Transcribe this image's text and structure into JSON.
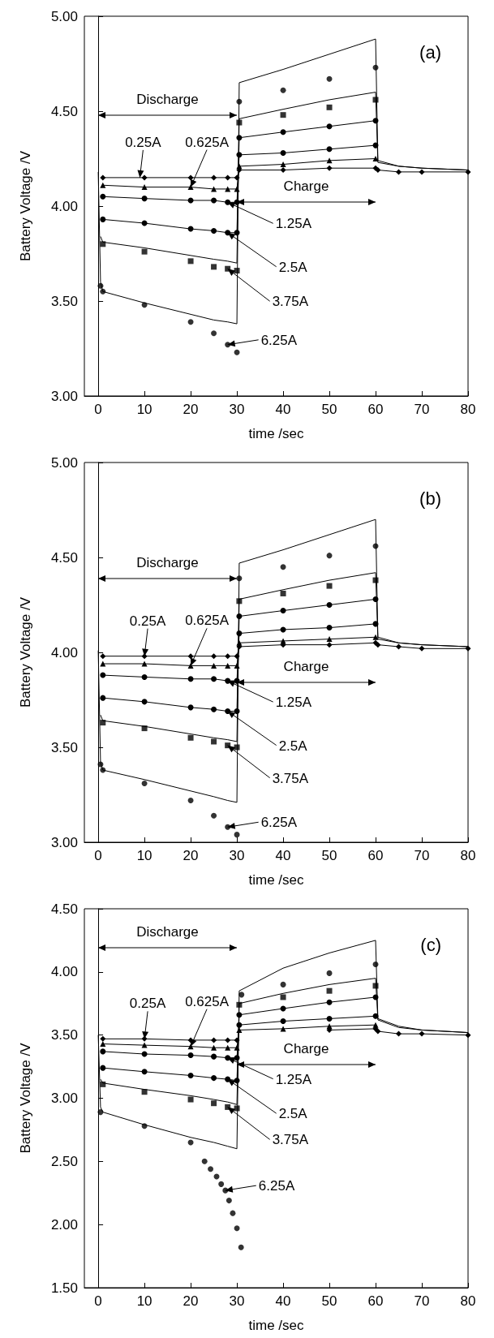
{
  "chart_data": [
    {
      "type": "line",
      "title": "(a)",
      "xlabel": "time /sec",
      "ylabel": "Battery Voltage /V",
      "x": [
        0,
        0.5,
        1,
        10,
        20,
        25,
        28,
        30,
        30.5,
        40,
        50,
        60,
        60.5,
        65,
        70,
        80
      ],
      "xlim": [
        -3,
        80
      ],
      "xticks": [
        0,
        10,
        20,
        30,
        40,
        50,
        60,
        70,
        80
      ],
      "ylim": [
        3,
        5
      ],
      "yticks": [
        {
          "value": 3,
          "label": "3.00"
        },
        {
          "value": 3.5,
          "label": "3.50"
        },
        {
          "value": 4,
          "label": "4.00"
        },
        {
          "value": 4.5,
          "label": "4.50"
        },
        {
          "value": 5,
          "label": "5.00"
        }
      ],
      "annotations": [
        "Discharge",
        "Charge",
        {
          "text": "0.25A",
          "x": 9,
          "y": 4.15
        },
        {
          "text": "0.625A",
          "x": 20,
          "y": 4.1
        },
        {
          "text": "1.25A",
          "x": 28,
          "y": 4.02
        },
        {
          "text": "2.5A",
          "x": 28,
          "y": 3.86
        },
        {
          "text": "3.75A",
          "x": 28,
          "y": 3.67
        },
        {
          "text": "6.25A",
          "x": 28,
          "y": 3.27
        }
      ],
      "series": [
        {
          "type": "line",
          "marker": "diamond",
          "color": "#000000",
          "values": [
            null,
            null,
            4.15,
            4.15,
            4.15,
            4.15,
            4.15,
            4.15,
            4.19,
            4.19,
            4.2,
            4.2,
            4.19,
            4.18,
            4.18,
            4.18
          ]
        },
        {
          "type": "line",
          "marker": "triangle",
          "color": "#000000",
          "values": [
            null,
            null,
            4.11,
            4.1,
            4.1,
            4.09,
            4.09,
            4.09,
            4.21,
            4.22,
            4.24,
            4.25,
            null,
            null,
            null,
            null
          ]
        },
        {
          "type": "line",
          "marker": "circle",
          "color": "#000000",
          "values": [
            null,
            null,
            4.05,
            4.04,
            4.03,
            4.03,
            4.02,
            4.02,
            4.27,
            4.28,
            4.3,
            4.32,
            null,
            null,
            null,
            null
          ]
        },
        {
          "type": "line",
          "marker": "circle",
          "color": "#000000",
          "values": [
            null,
            null,
            3.93,
            3.91,
            3.88,
            3.87,
            3.86,
            3.86,
            4.36,
            4.39,
            4.42,
            4.45,
            null,
            null,
            null,
            null
          ]
        },
        {
          "type": "line",
          "marker": "none",
          "color": "#000000",
          "values": [
            null,
            3.84,
            3.81,
            3.78,
            3.74,
            3.72,
            3.71,
            3.7,
            4.46,
            4.51,
            4.56,
            4.6,
            4.23,
            4.21,
            4.2,
            4.19
          ]
        },
        {
          "type": "line",
          "marker": "none",
          "color": "#000000",
          "values": [
            4.18,
            3.6,
            3.55,
            3.49,
            3.43,
            3.4,
            3.39,
            3.38,
            4.65,
            4.72,
            4.8,
            4.88,
            4.24,
            4.21,
            4.2,
            4.19
          ]
        },
        {
          "type": "scatter",
          "marker": "square",
          "color": "#000000",
          "values": [
            null,
            null,
            3.8,
            3.76,
            3.71,
            3.68,
            3.67,
            3.66,
            4.44,
            4.48,
            4.52,
            4.56,
            null,
            null,
            null,
            null
          ]
        },
        {
          "type": "scatter",
          "marker": "circle",
          "color": "#000000",
          "values": [
            null,
            3.58,
            3.55,
            3.48,
            3.39,
            3.33,
            3.27,
            3.23,
            4.55,
            4.61,
            4.67,
            4.73,
            null,
            null,
            null,
            null
          ]
        }
      ]
    },
    {
      "type": "line",
      "title": "(b)",
      "xlabel": "time /sec",
      "ylabel": "Battery Voltage /V",
      "x": [
        0,
        0.5,
        1,
        10,
        20,
        25,
        28,
        30,
        30.5,
        40,
        50,
        60,
        60.5,
        65,
        70,
        80
      ],
      "xlim": [
        -3,
        80
      ],
      "xticks": [
        0,
        10,
        20,
        30,
        40,
        50,
        60,
        70,
        80
      ],
      "ylim": [
        3,
        5
      ],
      "yticks": [
        {
          "value": 3,
          "label": "3.00"
        },
        {
          "value": 3.5,
          "label": "3.50"
        },
        {
          "value": 4,
          "label": "4.00"
        },
        {
          "value": 4.5,
          "label": "4.50"
        },
        {
          "value": 5,
          "label": "5.00"
        }
      ],
      "annotations": [
        "Discharge",
        "Charge",
        {
          "text": "0.25A",
          "x": 10,
          "y": 3.98
        },
        {
          "text": "0.625A",
          "x": 20,
          "y": 3.93
        },
        {
          "text": "1.25A",
          "x": 28,
          "y": 3.85
        },
        {
          "text": "2.5A",
          "x": 28,
          "y": 3.69
        },
        {
          "text": "3.75A",
          "x": 28,
          "y": 3.51
        },
        {
          "text": "6.25A",
          "x": 28,
          "y": 3.08
        }
      ],
      "series": [
        {
          "type": "line",
          "marker": "diamond",
          "color": "#000000",
          "values": [
            null,
            null,
            3.98,
            3.98,
            3.98,
            3.98,
            3.98,
            3.98,
            4.03,
            4.04,
            4.04,
            4.05,
            4.04,
            4.03,
            4.02,
            4.02
          ]
        },
        {
          "type": "line",
          "marker": "triangle",
          "color": "#000000",
          "values": [
            null,
            null,
            3.94,
            3.94,
            3.93,
            3.93,
            3.93,
            3.93,
            4.05,
            4.06,
            4.07,
            4.08,
            null,
            null,
            null,
            null
          ]
        },
        {
          "type": "line",
          "marker": "circle",
          "color": "#000000",
          "values": [
            null,
            null,
            3.88,
            3.87,
            3.86,
            3.86,
            3.85,
            3.85,
            4.1,
            4.12,
            4.13,
            4.15,
            null,
            null,
            null,
            null
          ]
        },
        {
          "type": "line",
          "marker": "circle",
          "color": "#000000",
          "values": [
            null,
            null,
            3.76,
            3.74,
            3.71,
            3.7,
            3.69,
            3.69,
            4.19,
            4.22,
            4.25,
            4.28,
            null,
            null,
            null,
            null
          ]
        },
        {
          "type": "line",
          "marker": "none",
          "color": "#000000",
          "values": [
            null,
            3.67,
            3.64,
            3.61,
            3.57,
            3.55,
            3.54,
            3.53,
            4.28,
            4.33,
            4.38,
            4.42,
            4.07,
            4.05,
            4.04,
            4.03
          ]
        },
        {
          "type": "line",
          "marker": "none",
          "color": "#000000",
          "values": [
            4.01,
            3.42,
            3.38,
            3.33,
            3.27,
            3.24,
            3.22,
            3.21,
            4.47,
            4.54,
            4.62,
            4.7,
            4.08,
            4.05,
            4.04,
            4.03
          ]
        },
        {
          "type": "scatter",
          "marker": "square",
          "color": "#000000",
          "values": [
            null,
            null,
            3.63,
            3.6,
            3.55,
            3.53,
            3.51,
            3.5,
            4.27,
            4.31,
            4.35,
            4.38,
            null,
            null,
            null,
            null
          ]
        },
        {
          "type": "scatter",
          "marker": "circle",
          "color": "#000000",
          "values": [
            null,
            3.41,
            3.38,
            3.31,
            3.22,
            3.14,
            3.08,
            3.04,
            4.39,
            4.45,
            4.51,
            4.56,
            null,
            null,
            null,
            null
          ]
        }
      ]
    },
    {
      "type": "line",
      "title": "(c)",
      "xlabel": "time /sec",
      "ylabel": "Battery Voltage /V",
      "x": [
        0,
        0.5,
        1,
        10,
        20,
        25,
        28,
        30,
        30.5,
        40,
        50,
        60,
        60.5,
        65,
        70,
        80
      ],
      "xlim": [
        -3,
        80
      ],
      "xticks": [
        0,
        10,
        20,
        30,
        40,
        50,
        60,
        70,
        80
      ],
      "ylim": [
        1.5,
        4.5
      ],
      "yticks": [
        {
          "value": 1.5,
          "label": "1.50"
        },
        {
          "value": 2,
          "label": "2.00"
        },
        {
          "value": 2.5,
          "label": "2.50"
        },
        {
          "value": 3,
          "label": "3.00"
        },
        {
          "value": 3.5,
          "label": "3.50"
        },
        {
          "value": 4,
          "label": "4.00"
        },
        {
          "value": 4.5,
          "label": "4.50"
        }
      ],
      "annotations": [
        "Discharge",
        "Charge",
        {
          "text": "0.25A",
          "x": 10,
          "y": 3.47
        },
        {
          "text": "0.625A",
          "x": 20,
          "y": 3.41
        },
        {
          "text": "1.25A",
          "x": 28,
          "y": 3.32
        },
        {
          "text": "2.5A",
          "x": 28,
          "y": 3.15
        },
        {
          "text": "3.75A",
          "x": 28,
          "y": 2.93
        },
        {
          "text": "6.25A",
          "x": 27.5,
          "y": 2.27
        }
      ],
      "series": [
        {
          "type": "line",
          "marker": "diamond",
          "color": "#000000",
          "values": [
            null,
            null,
            3.47,
            3.47,
            3.46,
            3.46,
            3.46,
            3.46,
            null,
            null,
            3.54,
            3.55,
            3.53,
            3.51,
            3.51,
            3.5
          ]
        },
        {
          "type": "line",
          "marker": "triangle",
          "color": "#000000",
          "values": [
            null,
            null,
            3.43,
            3.42,
            3.41,
            3.4,
            3.4,
            3.4,
            3.54,
            3.55,
            3.57,
            3.58,
            null,
            null,
            null,
            null
          ]
        },
        {
          "type": "line",
          "marker": "circle",
          "color": "#000000",
          "values": [
            null,
            null,
            3.37,
            3.35,
            3.34,
            3.33,
            3.32,
            3.32,
            3.58,
            3.61,
            3.63,
            3.65,
            null,
            null,
            null,
            null
          ]
        },
        {
          "type": "line",
          "marker": "circle",
          "color": "#000000",
          "values": [
            null,
            null,
            3.24,
            3.21,
            3.18,
            3.16,
            3.15,
            3.14,
            3.66,
            3.71,
            3.76,
            3.8,
            null,
            null,
            null,
            null
          ]
        },
        {
          "type": "line",
          "marker": "none",
          "color": "#000000",
          "values": [
            null,
            3.15,
            3.12,
            3.07,
            3.02,
            2.99,
            2.97,
            2.95,
            3.75,
            3.83,
            3.9,
            3.95,
            3.62,
            3.56,
            3.54,
            3.52
          ]
        },
        {
          "type": "line",
          "marker": "none",
          "color": "#000000",
          "values": [
            3.5,
            2.93,
            2.89,
            2.79,
            2.69,
            2.65,
            2.62,
            2.6,
            3.85,
            4.03,
            4.15,
            4.25,
            3.63,
            3.57,
            3.54,
            3.52
          ]
        },
        {
          "type": "scatter",
          "marker": "square",
          "color": "#000000",
          "values": [
            null,
            null,
            3.11,
            3.05,
            2.99,
            2.96,
            2.93,
            2.92,
            3.74,
            3.8,
            3.85,
            3.89,
            null,
            null,
            null,
            null
          ]
        },
        {
          "type": "scatter",
          "marker": "circle",
          "color": "#000000",
          "x": [
            0.5,
            10,
            20,
            23,
            24.3,
            25.6,
            26.6,
            27.5,
            28.3,
            29.1,
            30,
            30.9,
            31,
            40,
            50,
            60
          ],
          "values": [
            2.89,
            2.78,
            2.65,
            2.5,
            2.44,
            2.38,
            2.32,
            2.27,
            2.19,
            2.09,
            1.97,
            1.82,
            3.82,
            3.9,
            3.99,
            4.06
          ]
        }
      ]
    }
  ]
}
